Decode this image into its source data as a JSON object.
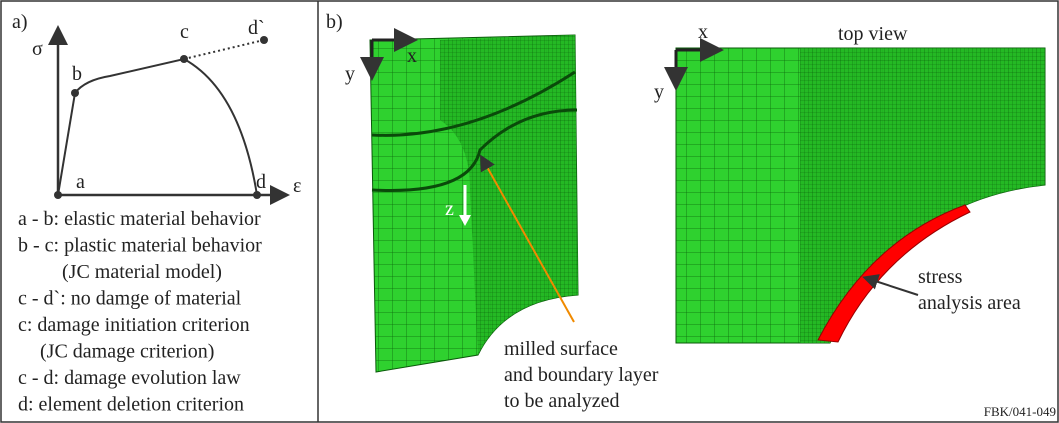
{
  "panel_a": {
    "label": "a)",
    "y_axis": "σ",
    "x_axis": "ε",
    "points": {
      "a": "a",
      "b": "b",
      "c": "c",
      "d": "d",
      "d_prime": "d`"
    },
    "legend": [
      "a - b: elastic material behavior",
      "b - c: plastic material behavior",
      "(JC material model)",
      "c - d`: no damge of material",
      "c: damage initiation criterion",
      "(JC damage criterion)",
      "c - d: damage evolution law",
      "d: element deletion criterion"
    ]
  },
  "panel_b": {
    "label": "b)",
    "side_view": {
      "x": "x",
      "y": "y",
      "z": "z"
    },
    "top_view": {
      "title": "top view",
      "x": "x",
      "y": "y"
    },
    "milled_note": [
      "milled surface",
      "and boundary layer",
      "to be analyzed"
    ],
    "stress_note": [
      "stress",
      "analysis area"
    ],
    "footer": "FBK/041-049"
  }
}
